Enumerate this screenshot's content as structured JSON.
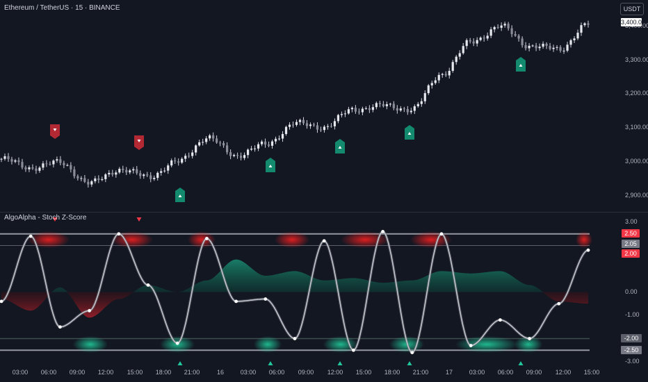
{
  "header": {
    "symbol_title": "Ethereum / TetherUS · 15 · BINANCE",
    "currency": "USDT"
  },
  "indicator": {
    "title": "AlgoAlpha - Stoch Z-Score"
  },
  "price_axis": {
    "labels": [
      "3,400.00",
      "3,300.00",
      "3,200.00",
      "3,100.00",
      "3,000.00",
      "2,900.00"
    ],
    "last_price_tag": "3,400.00"
  },
  "osc_axis": {
    "labels": [
      "3.00",
      "0.00",
      "-1.00",
      "-3.00"
    ],
    "tags": [
      "2.50",
      "2.05",
      "2.00",
      "-2.00",
      "-2.50"
    ]
  },
  "time_axis": [
    "03:00",
    "06:00",
    "09:00",
    "12:00",
    "15:00",
    "18:00",
    "21:00",
    "16",
    "03:00",
    "06:00",
    "09:00",
    "12:00",
    "15:00",
    "18:00",
    "21:00",
    "17",
    "03:00",
    "06:00",
    "09:00",
    "12:00",
    "15:00"
  ],
  "colors": {
    "bg": "#131722",
    "bull": "#26a69a",
    "bear": "#b22833",
    "candle": "#d1d4dc",
    "osc_line": "#9598a1"
  },
  "chart_data": {
    "type": "line",
    "x": [
      "03:00",
      "06:00",
      "09:00",
      "12:00",
      "15:00",
      "18:00",
      "21:00",
      "16",
      "03:00",
      "06:00",
      "09:00",
      "12:00",
      "15:00",
      "18:00",
      "21:00",
      "17",
      "03:00",
      "06:00",
      "09:00",
      "12:00",
      "15:00"
    ],
    "price_series": {
      "name": "ETHUSDT",
      "values": [
        3020,
        2995,
        3010,
        2950,
        2990,
        2970,
        3010,
        3080,
        3030,
        3060,
        3120,
        3110,
        3160,
        3170,
        3160,
        3260,
        3350,
        3395,
        3340,
        3330,
        3400
      ]
    },
    "price_ylim": [
      2880,
      3430
    ],
    "oscillator": {
      "name": "Stoch Z-Score",
      "values": [
        -0.4,
        2.4,
        -1.5,
        -0.8,
        2.5,
        0.3,
        -2.2,
        2.3,
        -0.4,
        -0.3,
        -2.0,
        2.2,
        -2.5,
        2.6,
        -2.6,
        2.5,
        -2.3,
        -1.2,
        -2.0,
        -0.5,
        1.8
      ],
      "ylim": [
        -3,
        3
      ],
      "levels": [
        2.5,
        2.0,
        0,
        -2.0,
        -2.5
      ]
    },
    "buy_signals": [
      "21:00",
      "06:00",
      "12:00",
      "21:00",
      "06:00"
    ],
    "sell_signals": [
      "06:00",
      "15:00"
    ]
  }
}
